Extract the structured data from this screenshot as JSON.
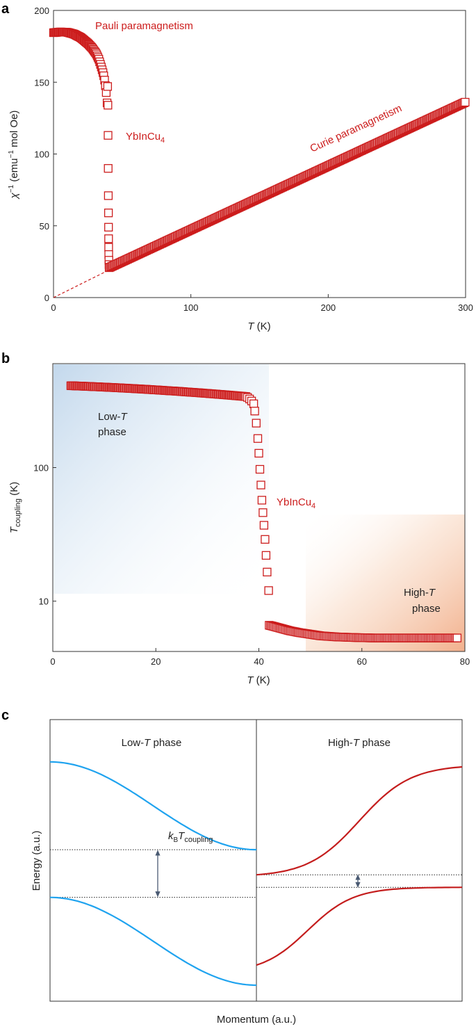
{
  "panels": {
    "a": "a",
    "b": "b",
    "c": "c"
  },
  "chart_data": [
    {
      "panel": "a",
      "type": "scatter",
      "xlabel_var": "T",
      "xlabel_unit": " (K)",
      "ylabel_var": "χ",
      "ylabel_sup": "−1",
      "ylabel_rest1": " (emu",
      "ylabel_sup2": "−1",
      "ylabel_rest2": " mol Oe)",
      "xlim": [
        0,
        300
      ],
      "ylim": [
        0,
        200
      ],
      "x_ticks": [
        "0",
        "100",
        "200",
        "300"
      ],
      "y_ticks": [
        "0",
        "50",
        "100",
        "150",
        "200"
      ],
      "annotations": {
        "pauli": "Pauli paramagnetism",
        "curie": "Curie paramagnetism",
        "material": "YbInCu",
        "material_sub": "4"
      },
      "low_T": {
        "x": [
          0,
          5,
          10,
          15,
          20,
          25,
          28,
          31,
          33,
          35,
          36.5,
          37.5,
          38.5,
          39.2
        ],
        "y": [
          184.5,
          185,
          184.8,
          183.5,
          181,
          177,
          174,
          170,
          166,
          160,
          155,
          150,
          142,
          133
        ]
      },
      "transition": {
        "x": [
          39.4,
          39.6,
          39.7,
          39.8,
          39.9,
          40.0,
          40.05,
          40.1,
          40.15,
          40.2,
          40.3,
          40.4,
          40.5
        ],
        "y": [
          147,
          134,
          113,
          90,
          71,
          59,
          49,
          41,
          35,
          30,
          26,
          23,
          21
        ]
      },
      "high_T": {
        "x_start": 40.5,
        "x_end": 300,
        "y_start": 20.8,
        "y_end": 136.2
      },
      "extrapolation": {
        "x": [
          0,
          40
        ],
        "y": [
          0,
          19
        ]
      }
    },
    {
      "panel": "b",
      "type": "scatter",
      "xlabel_var": "T",
      "xlabel_unit": " (K)",
      "ylabel_var": "T",
      "ylabel_sub": "coupling",
      "ylabel_unit": " (K)",
      "xlim": [
        0,
        80
      ],
      "ylim_log": [
        4.2,
        600
      ],
      "y_scale": "log",
      "x_ticks": [
        "0",
        "20",
        "40",
        "60",
        "80"
      ],
      "y_tick_values": [
        10,
        100
      ],
      "y_ticks": [
        "10",
        "100"
      ],
      "annotations": {
        "material": "YbInCu",
        "material_sub": "4",
        "low1": "Low-",
        "low_T": "T",
        "low2": "phase",
        "high1": "High-",
        "high_T": "T",
        "high2": "phase"
      },
      "low_T": {
        "x_start": 3.5,
        "x_end": 37.5,
        "y_start": 410,
        "y_end": 340
      },
      "knee": {
        "x": [
          37.8,
          38.2,
          38.6,
          39.0
        ],
        "y": [
          335,
          326,
          315,
          300
        ]
      },
      "transition": {
        "x": [
          39.2,
          39.5,
          39.8,
          40.0,
          40.2,
          40.4,
          40.6,
          40.8,
          41.0,
          41.2,
          41.4,
          41.6,
          41.9
        ],
        "y": [
          265,
          215,
          165,
          128,
          97,
          74,
          57,
          46,
          37,
          29,
          22,
          16.5,
          12
        ]
      },
      "high_T": {
        "x": [
          42,
          44,
          46,
          48,
          50,
          52,
          55,
          58,
          62,
          66,
          70,
          74,
          78.5
        ],
        "y": [
          6.6,
          6.3,
          6.0,
          5.8,
          5.65,
          5.5,
          5.4,
          5.35,
          5.3,
          5.3,
          5.3,
          5.3,
          5.3
        ]
      }
    },
    {
      "panel": "c",
      "type": "line",
      "xlabel": "Momentum (a.u.)",
      "ylabel": "Energy (a.u.)",
      "left_title_1": "Low-",
      "left_title_T": "T",
      "left_title_2": " phase",
      "right_title_1": "High-",
      "right_title_T": "T",
      "right_title_2": " phase",
      "gap_label_k": "k",
      "gap_label_B": "B",
      "gap_label_T": "T",
      "gap_label_sub": "coupling",
      "low_T_phase": {
        "upper_band": {
          "start": 0.84,
          "end": 0.49
        },
        "lower_band": {
          "start": 0.3,
          "end": -0.05
        },
        "gap_levels": [
          0.49,
          0.3
        ]
      },
      "high_T_phase": {
        "upper_band": {
          "start": 0.39,
          "end": 0.82
        },
        "lower_band": {
          "start": 0.03,
          "end": 0.34
        },
        "gap_levels": [
          0.39,
          0.34
        ]
      },
      "colors": {
        "low": "#1fa3ef",
        "high": "#c41d1d"
      }
    }
  ]
}
